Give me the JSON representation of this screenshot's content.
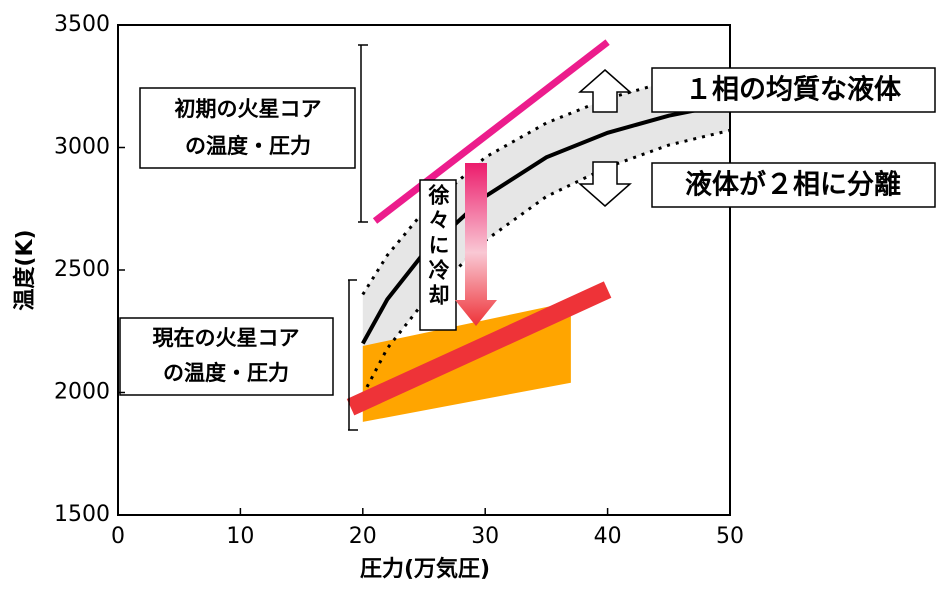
{
  "chart_data": {
    "type": "line",
    "xlabel": "圧力(万気圧)",
    "ylabel": "温度(K)",
    "xlim": [
      0,
      50
    ],
    "xticks": [
      0,
      10,
      20,
      30,
      40,
      50
    ],
    "ylim": [
      1500,
      3500
    ],
    "yticks": [
      1500,
      2000,
      2500,
      3000,
      3500
    ],
    "series": [
      {
        "color": "#000000",
        "style": "solid",
        "x": [
          20,
          22,
          25,
          30,
          35,
          40,
          45,
          50
        ],
        "values": [
          2200,
          2380,
          2570,
          2800,
          2960,
          3060,
          3130,
          3180
        ]
      },
      {
        "color": "#000000",
        "style": "dotted",
        "x": [
          20,
          22,
          25,
          30,
          35,
          40,
          45,
          50
        ],
        "values": [
          2400,
          2560,
          2740,
          2960,
          3100,
          3200,
          3270,
          3320
        ]
      },
      {
        "color": "#000000",
        "style": "dotted",
        "x": [
          20,
          22,
          25,
          30,
          35,
          40,
          45,
          50
        ],
        "values": [
          1990,
          2180,
          2370,
          2620,
          2800,
          2920,
          3010,
          3070
        ]
      },
      {
        "color": "#ec1c8c",
        "style": "thick",
        "x": [
          21,
          40
        ],
        "values": [
          2700,
          3430
        ]
      },
      {
        "color": "#ee3338",
        "style": "band",
        "x": [
          19,
          40
        ],
        "values": [
          1940,
          2420
        ]
      }
    ],
    "areas": [
      {
        "color": "#ffa500",
        "x": [
          20,
          37
        ],
        "upper": [
          2190,
          2370
        ],
        "lower": [
          1880,
          2040
        ]
      }
    ],
    "band_color": "#e6e6e6",
    "annotations": {
      "early": [
        "初期の火星コア",
        "の温度・圧力"
      ],
      "now": [
        "現在の火星コア",
        "の温度・圧力"
      ],
      "cooling": "徐々に冷却",
      "one_phase": "１相の均質な液体",
      "two_phase": "液体が２相に分離"
    }
  }
}
